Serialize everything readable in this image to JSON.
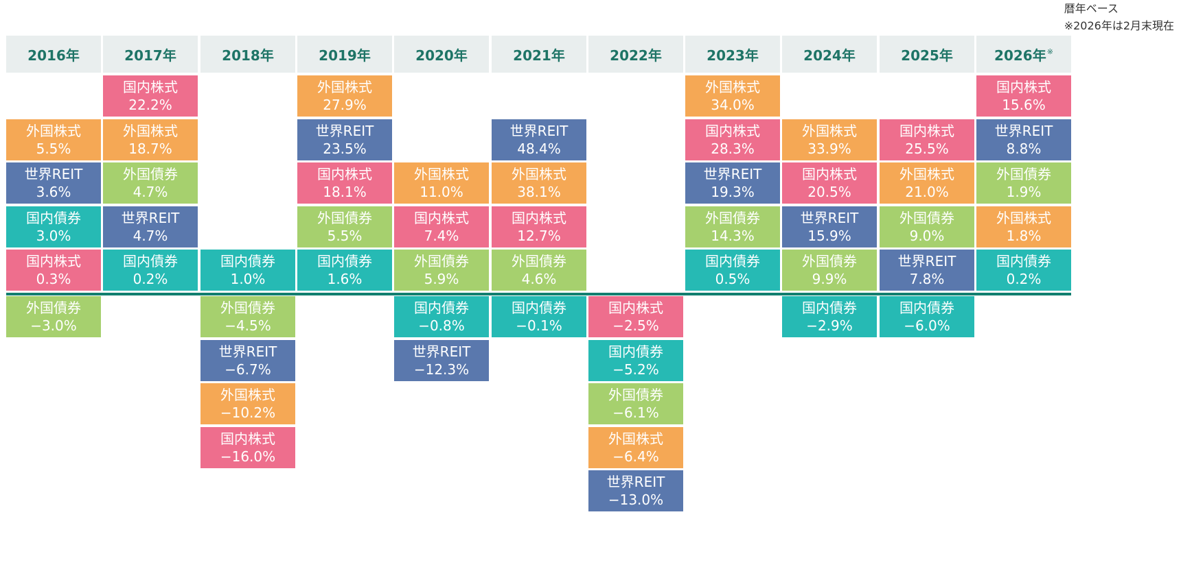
{
  "note": {
    "line1": "暦年ベース",
    "line2": "※2026年は2月末現在"
  },
  "colors": {
    "国内株式": "#EE6E8D",
    "外国株式": "#F5A855",
    "世界REIT": "#5A78AD",
    "国内債券": "#26BAB4",
    "外国債券": "#A6D06E",
    "header_bg": "#E9EEEE",
    "header_text": "#1E7466",
    "baseline": "#127E6F"
  },
  "chart_data": {
    "type": "table",
    "columns": [
      {
        "year": "2016年",
        "mark": "",
        "items": [
          {
            "asset": "外国株式",
            "value": "5.5%"
          },
          {
            "asset": "世界REIT",
            "value": "3.6%"
          },
          {
            "asset": "国内債券",
            "value": "3.0%"
          },
          {
            "asset": "国内株式",
            "value": "0.3%"
          },
          {
            "asset": "外国債券",
            "value": "−3.0%"
          }
        ]
      },
      {
        "year": "2017年",
        "mark": "",
        "items": [
          {
            "asset": "国内株式",
            "value": "22.2%"
          },
          {
            "asset": "外国株式",
            "value": "18.7%"
          },
          {
            "asset": "外国債券",
            "value": "4.7%"
          },
          {
            "asset": "世界REIT",
            "value": "4.7%"
          },
          {
            "asset": "国内債券",
            "value": "0.2%"
          }
        ]
      },
      {
        "year": "2018年",
        "mark": "",
        "items": [
          {
            "asset": "国内債券",
            "value": "1.0%"
          },
          {
            "asset": "外国債券",
            "value": "−4.5%"
          },
          {
            "asset": "世界REIT",
            "value": "−6.7%"
          },
          {
            "asset": "外国株式",
            "value": "−10.2%"
          },
          {
            "asset": "国内株式",
            "value": "−16.0%"
          }
        ]
      },
      {
        "year": "2019年",
        "mark": "",
        "items": [
          {
            "asset": "外国株式",
            "value": "27.9%"
          },
          {
            "asset": "世界REIT",
            "value": "23.5%"
          },
          {
            "asset": "国内株式",
            "value": "18.1%"
          },
          {
            "asset": "外国債券",
            "value": "5.5%"
          },
          {
            "asset": "国内債券",
            "value": "1.6%"
          }
        ]
      },
      {
        "year": "2020年",
        "mark": "",
        "items": [
          {
            "asset": "外国株式",
            "value": "11.0%"
          },
          {
            "asset": "国内株式",
            "value": "7.4%"
          },
          {
            "asset": "外国債券",
            "value": "5.9%"
          },
          {
            "asset": "国内債券",
            "value": "−0.8%"
          },
          {
            "asset": "世界REIT",
            "value": "−12.3%"
          }
        ]
      },
      {
        "year": "2021年",
        "mark": "",
        "items": [
          {
            "asset": "世界REIT",
            "value": "48.4%"
          },
          {
            "asset": "外国株式",
            "value": "38.1%"
          },
          {
            "asset": "国内株式",
            "value": "12.7%"
          },
          {
            "asset": "外国債券",
            "value": "4.6%"
          },
          {
            "asset": "国内債券",
            "value": "−0.1%"
          }
        ]
      },
      {
        "year": "2022年",
        "mark": "",
        "items": [
          {
            "asset": "国内株式",
            "value": "−2.5%"
          },
          {
            "asset": "国内債券",
            "value": "−5.2%"
          },
          {
            "asset": "外国債券",
            "value": "−6.1%"
          },
          {
            "asset": "外国株式",
            "value": "−6.4%"
          },
          {
            "asset": "世界REIT",
            "value": "−13.0%"
          }
        ]
      },
      {
        "year": "2023年",
        "mark": "",
        "items": [
          {
            "asset": "外国株式",
            "value": "34.0%"
          },
          {
            "asset": "国内株式",
            "value": "28.3%"
          },
          {
            "asset": "世界REIT",
            "value": "19.3%"
          },
          {
            "asset": "外国債券",
            "value": "14.3%"
          },
          {
            "asset": "国内債券",
            "value": "0.5%"
          }
        ]
      },
      {
        "year": "2024年",
        "mark": "",
        "items": [
          {
            "asset": "外国株式",
            "value": "33.9%"
          },
          {
            "asset": "国内株式",
            "value": "20.5%"
          },
          {
            "asset": "世界REIT",
            "value": "15.9%"
          },
          {
            "asset": "外国債券",
            "value": "9.9%"
          },
          {
            "asset": "国内債券",
            "value": "−2.9%"
          }
        ]
      },
      {
        "year": "2025年",
        "mark": "",
        "items": [
          {
            "asset": "国内株式",
            "value": "25.5%"
          },
          {
            "asset": "外国株式",
            "value": "21.0%"
          },
          {
            "asset": "外国債券",
            "value": "9.0%"
          },
          {
            "asset": "世界REIT",
            "value": "7.8%"
          },
          {
            "asset": "国内債券",
            "value": "−6.0%"
          }
        ]
      },
      {
        "year": "2026年",
        "mark": "※",
        "items": [
          {
            "asset": "国内株式",
            "value": "15.6%"
          },
          {
            "asset": "世界REIT",
            "value": "8.8%"
          },
          {
            "asset": "外国債券",
            "value": "1.9%"
          },
          {
            "asset": "外国株式",
            "value": "1.8%"
          },
          {
            "asset": "国内債券",
            "value": "0.2%"
          }
        ]
      }
    ]
  }
}
